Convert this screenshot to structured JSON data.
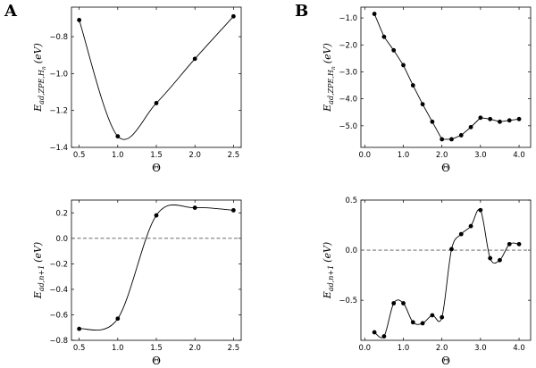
{
  "panel_labels": [
    "A",
    "B"
  ],
  "chart_data": [
    {
      "id": "A-top",
      "type": "line",
      "xlabel": "Θ",
      "ylabel": "E_ad,ZPE,H_n (eV)",
      "ylabel_main": "E",
      "ylabel_sub": "ad,ZPE,H",
      "ylabel_subsub": "n",
      "ylabel_unit": "(eV)",
      "xlim": [
        0.4,
        2.6
      ],
      "ylim": [
        -1.4,
        -0.64
      ],
      "xticks": [
        0.5,
        1.0,
        1.5,
        2.0,
        2.5
      ],
      "xticklabels": [
        "0.5",
        "1.0",
        "1.5",
        "2.0",
        "2.5"
      ],
      "yticks": [
        -1.4,
        -1.2,
        -1.0,
        -0.8
      ],
      "yticklabels": [
        "−1.4",
        "−1.2",
        "−1.0",
        "−0.8"
      ],
      "smooth": true,
      "reference_line": null,
      "x": [
        0.5,
        1.0,
        1.5,
        2.0,
        2.5
      ],
      "y": [
        -0.71,
        -1.34,
        -1.16,
        -0.92,
        -0.69
      ]
    },
    {
      "id": "B-top",
      "type": "line",
      "xlabel": "Θ",
      "ylabel": "E_ad,ZPE,H_n (eV)",
      "ylabel_main": "E",
      "ylabel_sub": "ad,ZPE,H",
      "ylabel_subsub": "n",
      "ylabel_unit": "(eV)",
      "xlim": [
        -0.1,
        4.3
      ],
      "ylim": [
        -5.8,
        -0.6
      ],
      "xticks": [
        0,
        1,
        2,
        3,
        4
      ],
      "xticklabels": [
        "0.0",
        "1.0",
        "2.0",
        "3.0",
        "4.0"
      ],
      "yticks": [
        -5,
        -4,
        -3,
        -2,
        -1
      ],
      "yticklabels": [
        "−5.0",
        "−4.0",
        "−3.0",
        "−2.0",
        "−1.0"
      ],
      "smooth": false,
      "reference_line": null,
      "x": [
        0.25,
        0.5,
        0.75,
        1.0,
        1.25,
        1.5,
        1.75,
        2.0,
        2.25,
        2.5,
        2.75,
        3.0,
        3.25,
        3.5,
        3.75,
        4.0
      ],
      "y": [
        -0.85,
        -1.7,
        -2.2,
        -2.75,
        -3.5,
        -4.2,
        -4.85,
        -5.5,
        -5.5,
        -5.35,
        -5.05,
        -4.7,
        -4.75,
        -4.85,
        -4.8,
        -4.75
      ]
    },
    {
      "id": "A-bottom",
      "type": "line",
      "xlabel": "Θ",
      "ylabel": "E_ad,n+1 (eV)",
      "ylabel_main": "E",
      "ylabel_sub": "ad,n+1",
      "ylabel_subsub": "",
      "ylabel_unit": "(eV)",
      "xlim": [
        0.4,
        2.6
      ],
      "ylim": [
        -0.8,
        0.3
      ],
      "xticks": [
        0.5,
        1.0,
        1.5,
        2.0,
        2.5
      ],
      "xticklabels": [
        "0.5",
        "1.0",
        "1.5",
        "2.0",
        "2.5"
      ],
      "yticks": [
        -0.8,
        -0.6,
        -0.4,
        -0.2,
        0.0,
        0.2
      ],
      "yticklabels": [
        "−0.8",
        "−0.6",
        "−0.4",
        "−0.2",
        "0.0",
        "0.2"
      ],
      "smooth": true,
      "reference_line": 0.0,
      "x": [
        0.5,
        1.0,
        1.5,
        2.0,
        2.5
      ],
      "y": [
        -0.71,
        -0.63,
        0.18,
        0.24,
        0.22
      ]
    },
    {
      "id": "B-bottom",
      "type": "line",
      "xlabel": "Θ",
      "ylabel": "E_ad,n+1 (eV)",
      "ylabel_main": "E",
      "ylabel_sub": "ad,n+1",
      "ylabel_subsub": "",
      "ylabel_unit": "(eV)",
      "xlim": [
        -0.1,
        4.3
      ],
      "ylim": [
        -0.9,
        0.5
      ],
      "xticks": [
        0,
        1,
        2,
        3,
        4
      ],
      "xticklabels": [
        "0.0",
        "1.0",
        "2.0",
        "3.0",
        "4.0"
      ],
      "yticks": [
        -0.5,
        0.0,
        0.5
      ],
      "yticklabels": [
        "−0.5",
        "0.0",
        "0.5"
      ],
      "smooth": true,
      "reference_line": 0.0,
      "x": [
        0.25,
        0.5,
        0.75,
        1.0,
        1.25,
        1.5,
        1.75,
        2.0,
        2.25,
        2.5,
        2.75,
        3.0,
        3.25,
        3.5,
        3.75,
        4.0
      ],
      "y": [
        -0.82,
        -0.86,
        -0.53,
        -0.53,
        -0.72,
        -0.73,
        -0.65,
        -0.67,
        0.01,
        0.16,
        0.24,
        0.4,
        -0.08,
        -0.1,
        0.06,
        0.06
      ]
    }
  ]
}
